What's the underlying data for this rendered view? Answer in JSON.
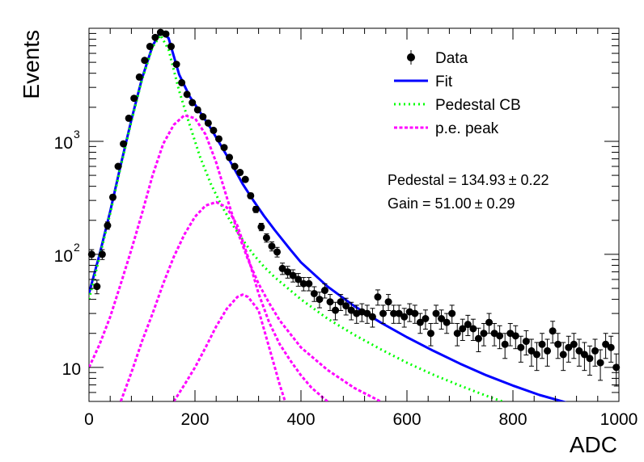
{
  "chart_data": {
    "type": "line",
    "xlabel": "ADC",
    "ylabel": "Events",
    "xlim": [
      0,
      1000
    ],
    "ylim": [
      5,
      10000
    ],
    "yscale": "log",
    "x_ticks": [
      "0",
      "200",
      "400",
      "600",
      "800",
      "1000"
    ],
    "y_ticks": [
      {
        "value": 10,
        "label": "10"
      },
      {
        "value": 100,
        "label": "10",
        "exp": "2"
      },
      {
        "value": 1000,
        "label": "10",
        "exp": "3"
      }
    ],
    "legend": {
      "placement": "top-right",
      "entries": [
        {
          "label": "Data",
          "style": "marker",
          "color": "#000000"
        },
        {
          "label": "Fit",
          "style": "solid",
          "color": "#0000ff"
        },
        {
          "label": "Pedestal CB",
          "style": "dotted",
          "color": "#00ff00"
        },
        {
          "label": "p.e. peak",
          "style": "dashed",
          "color": "#ff00ff"
        }
      ]
    },
    "annotations": [
      {
        "text": "Pedestal = 134.93",
        "pm": "0.22"
      },
      {
        "text": "Gain = 51.00",
        "pm": "0.29"
      }
    ],
    "series": [
      {
        "name": "Data",
        "style": "marker",
        "color": "#000000",
        "points": [
          [
            5,
            100
          ],
          [
            15,
            52
          ],
          [
            25,
            100
          ],
          [
            35,
            180
          ],
          [
            45,
            320
          ],
          [
            55,
            600
          ],
          [
            65,
            950
          ],
          [
            75,
            1600
          ],
          [
            85,
            2400
          ],
          [
            95,
            3700
          ],
          [
            105,
            5200
          ],
          [
            115,
            6900
          ],
          [
            125,
            8300
          ],
          [
            135,
            9200
          ],
          [
            145,
            8900
          ],
          [
            155,
            6900
          ],
          [
            165,
            4800
          ],
          [
            175,
            3300
          ],
          [
            185,
            2600
          ],
          [
            195,
            2200
          ],
          [
            205,
            1900
          ],
          [
            215,
            1650
          ],
          [
            225,
            1450
          ],
          [
            235,
            1250
          ],
          [
            245,
            1050
          ],
          [
            255,
            880
          ],
          [
            265,
            720
          ],
          [
            275,
            600
          ],
          [
            285,
            530
          ],
          [
            295,
            460
          ],
          [
            305,
            330
          ],
          [
            315,
            250
          ],
          [
            325,
            175
          ],
          [
            335,
            140
          ],
          [
            345,
            118
          ],
          [
            355,
            105
          ],
          [
            365,
            75
          ],
          [
            375,
            70
          ],
          [
            385,
            65
          ],
          [
            395,
            60
          ],
          [
            405,
            55
          ],
          [
            415,
            55
          ],
          [
            425,
            45
          ],
          [
            435,
            40
          ],
          [
            445,
            48
          ],
          [
            455,
            38
          ],
          [
            465,
            32
          ],
          [
            475,
            38
          ],
          [
            485,
            35
          ],
          [
            495,
            32
          ],
          [
            505,
            30
          ],
          [
            515,
            31
          ],
          [
            525,
            30
          ],
          [
            535,
            28
          ],
          [
            545,
            42
          ],
          [
            555,
            30
          ],
          [
            565,
            38
          ],
          [
            575,
            30
          ],
          [
            585,
            30
          ],
          [
            595,
            28
          ],
          [
            605,
            31
          ],
          [
            615,
            30
          ],
          [
            625,
            25
          ],
          [
            635,
            27
          ],
          [
            645,
            20
          ],
          [
            655,
            30
          ],
          [
            665,
            27
          ],
          [
            675,
            25
          ],
          [
            685,
            30
          ],
          [
            695,
            20
          ],
          [
            705,
            22
          ],
          [
            715,
            24
          ],
          [
            725,
            22
          ],
          [
            735,
            18
          ],
          [
            745,
            20
          ],
          [
            755,
            25
          ],
          [
            765,
            20
          ],
          [
            775,
            19
          ],
          [
            785,
            16
          ],
          [
            795,
            20
          ],
          [
            805,
            19
          ],
          [
            815,
            15
          ],
          [
            825,
            17
          ],
          [
            835,
            14
          ],
          [
            845,
            13
          ],
          [
            855,
            16
          ],
          [
            865,
            14
          ],
          [
            875,
            21
          ],
          [
            885,
            16
          ],
          [
            895,
            13
          ],
          [
            905,
            15
          ],
          [
            915,
            16
          ],
          [
            925,
            14
          ],
          [
            935,
            13
          ],
          [
            945,
            12
          ],
          [
            955,
            14
          ],
          [
            965,
            11
          ],
          [
            975,
            16
          ],
          [
            985,
            15
          ],
          [
            995,
            10
          ]
        ]
      },
      {
        "name": "Fit",
        "style": "solid",
        "color": "#0000ff",
        "points": [
          [
            0,
            45
          ],
          [
            20,
            100
          ],
          [
            40,
            240
          ],
          [
            60,
            620
          ],
          [
            80,
            1550
          ],
          [
            100,
            3600
          ],
          [
            120,
            7000
          ],
          [
            135,
            9300
          ],
          [
            150,
            8200
          ],
          [
            170,
            3900
          ],
          [
            190,
            2500
          ],
          [
            210,
            1800
          ],
          [
            230,
            1300
          ],
          [
            250,
            900
          ],
          [
            270,
            620
          ],
          [
            290,
            420
          ],
          [
            310,
            300
          ],
          [
            330,
            220
          ],
          [
            350,
            165
          ],
          [
            380,
            110
          ],
          [
            400,
            85
          ],
          [
            450,
            52
          ],
          [
            500,
            35
          ],
          [
            550,
            25
          ],
          [
            600,
            18.5
          ],
          [
            650,
            14
          ],
          [
            700,
            10.8
          ],
          [
            750,
            8.5
          ],
          [
            800,
            6.9
          ],
          [
            850,
            5.7
          ],
          [
            900,
            4.9
          ]
        ]
      },
      {
        "name": "Pedestal CB",
        "style": "dotted",
        "color": "#00ff00",
        "points": [
          [
            0,
            40
          ],
          [
            20,
            95
          ],
          [
            40,
            230
          ],
          [
            60,
            600
          ],
          [
            80,
            1500
          ],
          [
            100,
            3500
          ],
          [
            120,
            6800
          ],
          [
            135,
            8700
          ],
          [
            150,
            6500
          ],
          [
            170,
            2800
          ],
          [
            190,
            1400
          ],
          [
            210,
            720
          ],
          [
            230,
            420
          ],
          [
            250,
            270
          ],
          [
            270,
            185
          ],
          [
            290,
            135
          ],
          [
            310,
            100
          ],
          [
            330,
            78
          ],
          [
            350,
            63
          ],
          [
            400,
            40
          ],
          [
            450,
            27
          ],
          [
            500,
            19.5
          ],
          [
            550,
            14.5
          ],
          [
            600,
            11
          ],
          [
            650,
            8.6
          ],
          [
            700,
            6.9
          ],
          [
            750,
            5.6
          ],
          [
            780,
            5
          ]
        ]
      },
      {
        "name": "p.e. peak 1",
        "style": "dashed",
        "color": "#ff00ff",
        "points": [
          [
            0,
            10
          ],
          [
            20,
            16
          ],
          [
            40,
            28
          ],
          [
            60,
            55
          ],
          [
            80,
            110
          ],
          [
            100,
            230
          ],
          [
            120,
            500
          ],
          [
            140,
            950
          ],
          [
            160,
            1400
          ],
          [
            180,
            1700
          ],
          [
            200,
            1600
          ],
          [
            220,
            1150
          ],
          [
            240,
            650
          ],
          [
            260,
            320
          ],
          [
            280,
            160
          ],
          [
            300,
            90
          ],
          [
            320,
            55
          ],
          [
            340,
            37
          ],
          [
            360,
            26
          ],
          [
            400,
            15
          ],
          [
            450,
            9.5
          ],
          [
            500,
            6.6
          ],
          [
            550,
            5
          ]
        ]
      },
      {
        "name": "p.e. peak 2",
        "style": "dashed",
        "color": "#ff00ff",
        "points": [
          [
            60,
            5
          ],
          [
            80,
            9
          ],
          [
            100,
            17
          ],
          [
            120,
            30
          ],
          [
            140,
            55
          ],
          [
            160,
            95
          ],
          [
            180,
            150
          ],
          [
            200,
            215
          ],
          [
            220,
            270
          ],
          [
            240,
            290
          ],
          [
            260,
            260
          ],
          [
            280,
            180
          ],
          [
            300,
            95
          ],
          [
            320,
            45
          ],
          [
            340,
            25
          ],
          [
            360,
            16
          ],
          [
            380,
            11.5
          ],
          [
            400,
            8.5
          ],
          [
            420,
            6.6
          ],
          [
            450,
            5
          ]
        ]
      },
      {
        "name": "p.e. peak 3",
        "style": "dashed",
        "color": "#ff00ff",
        "points": [
          [
            160,
            5
          ],
          [
            180,
            7
          ],
          [
            200,
            10
          ],
          [
            220,
            15
          ],
          [
            240,
            23
          ],
          [
            260,
            33
          ],
          [
            280,
            42
          ],
          [
            290,
            44
          ],
          [
            300,
            42
          ],
          [
            320,
            32
          ],
          [
            340,
            15
          ],
          [
            360,
            7
          ],
          [
            370,
            5
          ]
        ]
      }
    ]
  }
}
